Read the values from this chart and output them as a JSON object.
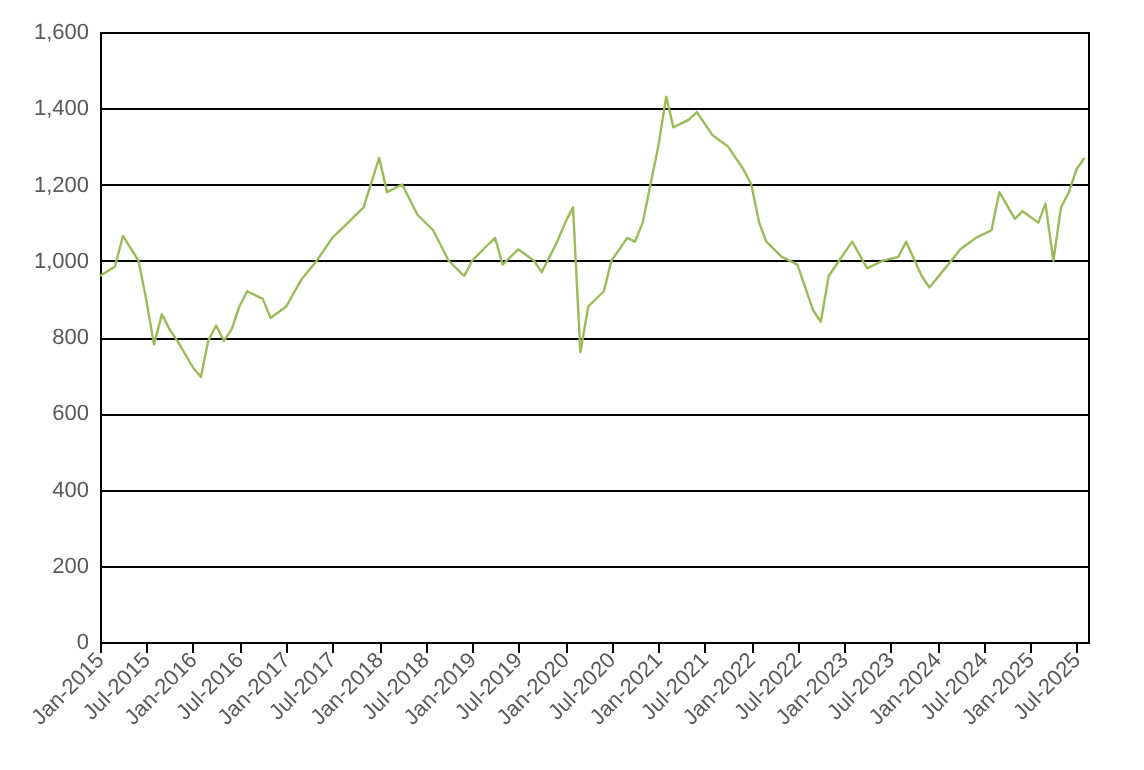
{
  "chart_data": {
    "type": "line",
    "x": [
      "2015-01",
      "2015-03",
      "2015-04",
      "2015-06",
      "2015-07",
      "2015-08",
      "2015-09",
      "2015-10",
      "2015-11",
      "2016-01",
      "2016-02",
      "2016-03",
      "2016-04",
      "2016-05",
      "2016-06",
      "2016-07",
      "2016-08",
      "2016-10",
      "2016-11",
      "2017-01",
      "2017-03",
      "2017-05",
      "2017-07",
      "2017-09",
      "2017-11",
      "2018-01",
      "2018-02",
      "2018-04",
      "2018-06",
      "2018-08",
      "2018-10",
      "2018-12",
      "2019-01",
      "2019-03",
      "2019-04",
      "2019-05",
      "2019-07",
      "2019-09",
      "2019-10",
      "2019-12",
      "2020-01",
      "2020-02",
      "2020-03",
      "2020-04",
      "2020-06",
      "2020-07",
      "2020-09",
      "2020-10",
      "2020-11",
      "2020-12",
      "2021-01",
      "2021-02",
      "2021-03",
      "2021-05",
      "2021-06",
      "2021-08",
      "2021-10",
      "2021-12",
      "2022-01",
      "2022-02",
      "2022-03",
      "2022-05",
      "2022-07",
      "2022-09",
      "2022-10",
      "2022-11",
      "2023-01",
      "2023-02",
      "2023-04",
      "2023-06",
      "2023-08",
      "2023-09",
      "2023-11",
      "2023-12",
      "2024-02",
      "2024-04",
      "2024-06",
      "2024-08",
      "2024-09",
      "2024-11",
      "2024-12",
      "2025-02",
      "2025-03",
      "2025-04",
      "2025-05",
      "2025-06",
      "2025-07",
      "2025-08"
    ],
    "series": [
      {
        "color": "#9bbb59",
        "values": [
          960,
          985,
          1065,
          1000,
          900,
          780,
          860,
          820,
          790,
          720,
          695,
          790,
          830,
          790,
          820,
          880,
          920,
          900,
          850,
          880,
          950,
          1000,
          1060,
          1100,
          1140,
          1270,
          1180,
          1200,
          1120,
          1080,
          1000,
          960,
          1000,
          1040,
          1060,
          990,
          1030,
          1000,
          970,
          1050,
          1100,
          1140,
          760,
          880,
          920,
          1000,
          1060,
          1050,
          1100,
          1200,
          1300,
          1430,
          1350,
          1370,
          1390,
          1330,
          1300,
          1240,
          1200,
          1100,
          1050,
          1010,
          990,
          870,
          840,
          960,
          1020,
          1050,
          980,
          1000,
          1010,
          1050,
          960,
          930,
          980,
          1030,
          1060,
          1080,
          1180,
          1110,
          1130,
          1100,
          1150,
          1000,
          1140,
          1180,
          1240,
          1270
        ]
      }
    ],
    "xlim": [
      "2015-01-01",
      "2025-08-15"
    ],
    "xticks": [
      {
        "value": "2015-01",
        "label": "Jan-2015"
      },
      {
        "value": "2015-07",
        "label": "Jul-2015"
      },
      {
        "value": "2016-01",
        "label": "Jan-2016"
      },
      {
        "value": "2016-07",
        "label": "Jul-2016"
      },
      {
        "value": "2017-01",
        "label": "Jan-2017"
      },
      {
        "value": "2017-07",
        "label": "Jul-2017"
      },
      {
        "value": "2018-01",
        "label": "Jan-2018"
      },
      {
        "value": "2018-07",
        "label": "Jul-2018"
      },
      {
        "value": "2019-01",
        "label": "Jan-2019"
      },
      {
        "value": "2019-07",
        "label": "Jul-2019"
      },
      {
        "value": "2020-01",
        "label": "Jan-2020"
      },
      {
        "value": "2020-07",
        "label": "Jul-2020"
      },
      {
        "value": "2021-01",
        "label": "Jan-2021"
      },
      {
        "value": "2021-07",
        "label": "Jul-2021"
      },
      {
        "value": "2022-01",
        "label": "Jan-2022"
      },
      {
        "value": "2022-07",
        "label": "Jul-2022"
      },
      {
        "value": "2023-01",
        "label": "Jan-2023"
      },
      {
        "value": "2023-07",
        "label": "Jul-2023"
      },
      {
        "value": "2024-01",
        "label": "Jan-2024"
      },
      {
        "value": "2024-07",
        "label": "Jul-2024"
      },
      {
        "value": "2025-01",
        "label": "Jan-2025"
      },
      {
        "value": "2025-07",
        "label": "Jul-2025"
      }
    ],
    "ylim": [
      0,
      1600
    ],
    "yticks": [
      {
        "value": 0,
        "label": "0"
      },
      {
        "value": 200,
        "label": "200"
      },
      {
        "value": 400,
        "label": "400"
      },
      {
        "value": 600,
        "label": "600"
      },
      {
        "value": 800,
        "label": "800"
      },
      {
        "value": 1000,
        "label": "1,000"
      },
      {
        "value": 1200,
        "label": "1,200"
      },
      {
        "value": 1400,
        "label": "1,400"
      },
      {
        "value": 1600,
        "label": "1,600"
      }
    ],
    "grid": "y",
    "marker": "none",
    "line_style": "solid"
  }
}
